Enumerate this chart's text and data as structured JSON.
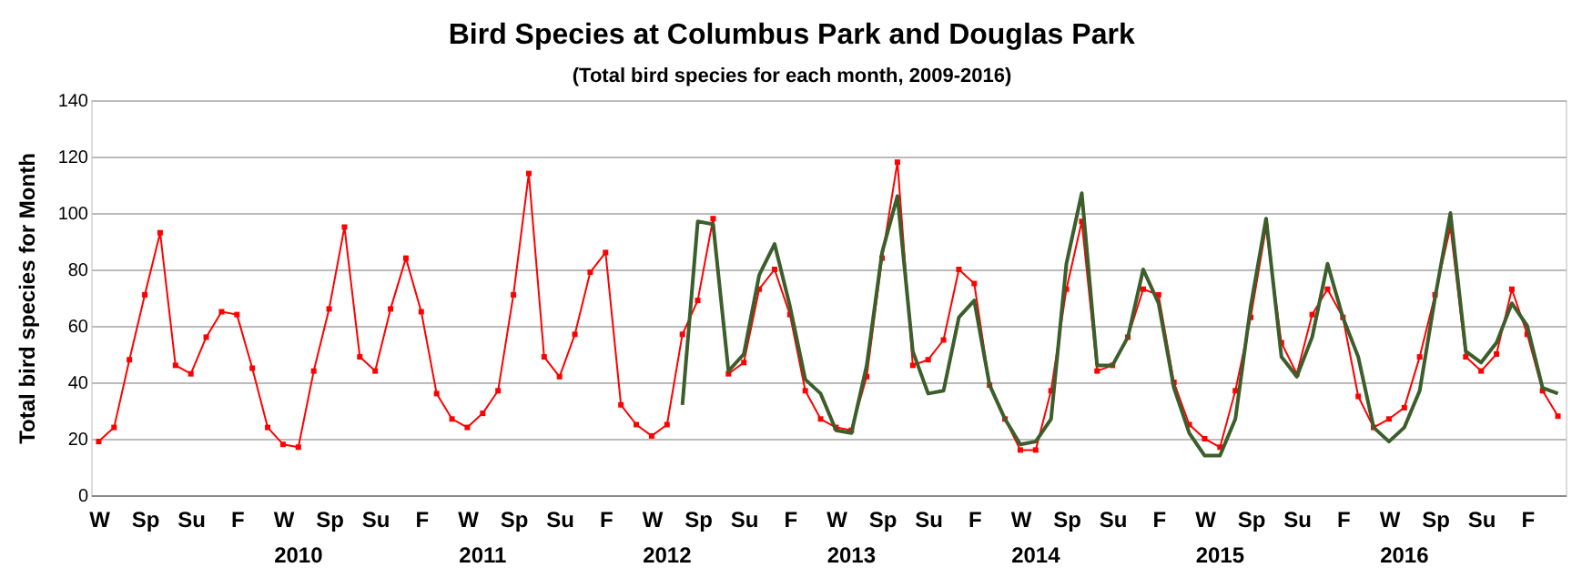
{
  "chart_data": {
    "type": "line",
    "title": "Bird Species at Columbus Park and Douglas Park",
    "subtitle": "(Total bird species for each month, 2009-2016)",
    "ylabel": "Total bird species for Month",
    "categories": [
      "W",
      null,
      null,
      "Sp",
      null,
      null,
      "Su",
      null,
      null,
      "F",
      null,
      null,
      "W",
      null,
      null,
      "Sp",
      null,
      null,
      "Su",
      null,
      null,
      "F",
      null,
      null,
      "W",
      null,
      null,
      "Sp",
      null,
      null,
      "Su",
      null,
      null,
      "F",
      null,
      null,
      "W",
      null,
      null,
      "Sp",
      null,
      null,
      "Su",
      null,
      null,
      "F",
      null,
      null,
      "W",
      null,
      null,
      "Sp",
      null,
      null,
      "Su",
      null,
      null,
      "F",
      null,
      null,
      "W",
      null,
      null,
      "Sp",
      null,
      null,
      "Su",
      null,
      null,
      "F",
      null,
      null,
      "W",
      null,
      null,
      "Sp",
      null,
      null,
      "Su",
      null,
      null,
      "F",
      null,
      null,
      "W",
      null,
      null,
      "Sp",
      null,
      null,
      "Su",
      null,
      null,
      "F",
      null,
      null
    ],
    "series": [
      {
        "color": "#ff0000",
        "marker": "square",
        "values": [
          19,
          24,
          48,
          71,
          93,
          46,
          43,
          56,
          65,
          64,
          45,
          24,
          18,
          17,
          44,
          66,
          95,
          49,
          44,
          66,
          84,
          65,
          36,
          27,
          24,
          29,
          37,
          71,
          114,
          49,
          42,
          57,
          79,
          86,
          32,
          25,
          21,
          25,
          57,
          69,
          98,
          43,
          47,
          73,
          80,
          64,
          37,
          27,
          24,
          23,
          42,
          84,
          118,
          46,
          48,
          55,
          80,
          75,
          39,
          27,
          16,
          16,
          37,
          73,
          97,
          44,
          46,
          56,
          73,
          71,
          40,
          25,
          20,
          17,
          37,
          63,
          95,
          54,
          43,
          64,
          73,
          63,
          35,
          24,
          27,
          31,
          49,
          71,
          95,
          49,
          44,
          50,
          73,
          57,
          37,
          28
        ]
      },
      {
        "color": "#3b5e2b",
        "marker": "none",
        "values": [
          null,
          null,
          null,
          null,
          null,
          null,
          null,
          null,
          null,
          null,
          null,
          null,
          null,
          null,
          null,
          null,
          null,
          null,
          null,
          null,
          null,
          null,
          null,
          null,
          null,
          null,
          null,
          null,
          null,
          null,
          null,
          null,
          null,
          null,
          null,
          null,
          null,
          null,
          32,
          97,
          96,
          44,
          50,
          78,
          89,
          67,
          41,
          36,
          23,
          22,
          46,
          86,
          106,
          51,
          36,
          37,
          63,
          69,
          39,
          27,
          18,
          19,
          27,
          82,
          107,
          46,
          46,
          56,
          80,
          68,
          38,
          22,
          14,
          14,
          27,
          67,
          98,
          49,
          42,
          56,
          82,
          63,
          49,
          24,
          19,
          24,
          37,
          70,
          100,
          51,
          47,
          54,
          68,
          60,
          38,
          36
        ]
      }
    ],
    "ylim": [
      0,
      140
    ],
    "yticks": [
      0,
      20,
      40,
      60,
      80,
      100,
      120,
      140
    ],
    "grid": "y",
    "annotations": [
      "2010",
      "2011",
      "2012",
      "2013",
      "2014",
      "2015",
      "2016"
    ]
  }
}
